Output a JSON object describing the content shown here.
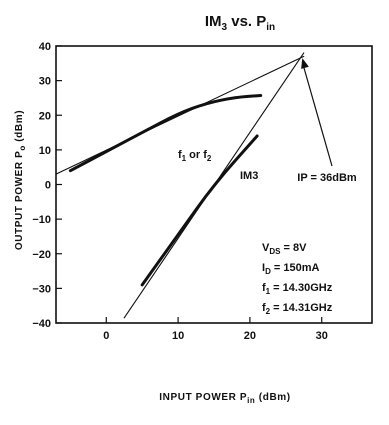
{
  "chart_data": {
    "type": "line",
    "title": "IM",
    "title_sub": "3",
    "title_tail": " vs. P",
    "title_sub2": "in",
    "xlabel": "INPUT POWER  P",
    "xlabel_sub": "in",
    "xlabel_tail": " (dBm)",
    "ylabel": "OUTPUT POWER P",
    "ylabel_sub": "o",
    "ylabel_tail": " (dBm)",
    "xlim": [
      -7,
      37
    ],
    "ylim": [
      -40,
      40
    ],
    "x_ticks": [
      "0",
      "10",
      "20",
      "30"
    ],
    "x_tick_values": [
      0,
      10,
      20,
      30
    ],
    "y_ticks": [
      "40",
      "30",
      "20",
      "10",
      "0",
      "−10",
      "−20",
      "−30",
      "−40"
    ],
    "y_tick_values": [
      40,
      30,
      20,
      10,
      0,
      -10,
      -20,
      -30,
      -40
    ],
    "series": [
      {
        "name": "f₁ or f₂",
        "kind": "measured",
        "x": [
          -5,
          0,
          5,
          10,
          14,
          18,
          21.5
        ],
        "y": [
          4,
          9.5,
          15,
          20.5,
          23.5,
          25.2,
          25.7
        ]
      },
      {
        "name": "IM3",
        "kind": "measured",
        "x": [
          5,
          10,
          15,
          21
        ],
        "y": [
          -29,
          -14.5,
          0,
          14
        ]
      },
      {
        "kind": "extrapolation",
        "x": [
          -7,
          27.5
        ],
        "y": [
          3,
          37
        ]
      },
      {
        "kind": "extrapolation",
        "x": [
          2.5,
          27.5
        ],
        "y": [
          -38.5,
          38
        ]
      }
    ],
    "annotations": {
      "fundamental_label": "f₁ or f₂",
      "im3_label": "IM3",
      "ip_label": "IP = 36dBm",
      "ip_point": [
        27.3,
        36.5
      ],
      "conditions": [
        "V₂ₛ = 8V",
        "I₂ = 150mA",
        "f₁ = 14.30GHz",
        "f₂ = 14.31GHz"
      ]
    },
    "conditions_display": [
      {
        "main": "V",
        "sub": "DS",
        "tail": " = 8V"
      },
      {
        "main": "I",
        "sub": "D",
        "tail": " = 150mA"
      },
      {
        "main": "f",
        "sub": "1",
        "tail": " = 14.30GHz"
      },
      {
        "main": "f",
        "sub": "2",
        "tail": " = 14.31GHz"
      }
    ],
    "grid": false,
    "colors": {
      "ink": "#111111",
      "background": "#ffffff"
    }
  }
}
